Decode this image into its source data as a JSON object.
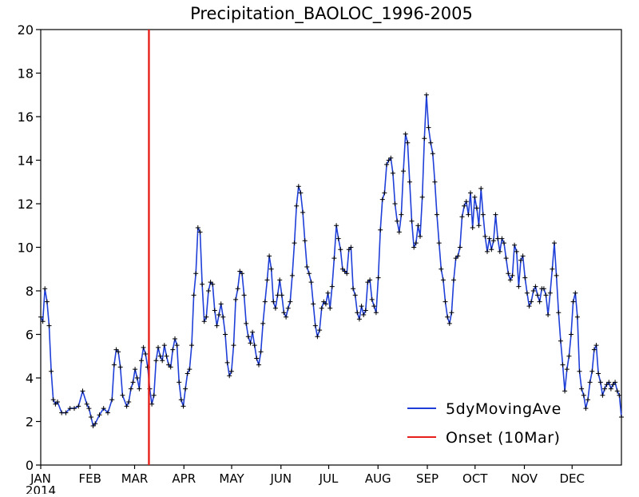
{
  "chart_data": {
    "type": "line",
    "title": "Precipitation_BAOLOC_1996-2005",
    "xlabel": "",
    "ylabel": "",
    "ylim": [
      0,
      20
    ],
    "xlim_days": [
      0,
      365
    ],
    "yticks": [
      "0",
      "2",
      "4",
      "6",
      "8",
      "10",
      "12",
      "14",
      "16",
      "18",
      "20"
    ],
    "xticks": [
      {
        "label": "JAN",
        "day": 0
      },
      {
        "label": "FEB",
        "day": 31
      },
      {
        "label": "MAR",
        "day": 59
      },
      {
        "label": "APR",
        "day": 90
      },
      {
        "label": "MAY",
        "day": 120
      },
      {
        "label": "JUN",
        "day": 151
      },
      {
        "label": "JUL",
        "day": 181
      },
      {
        "label": "AUG",
        "day": 212
      },
      {
        "label": "SEP",
        "day": 243
      },
      {
        "label": "OCT",
        "day": 273
      },
      {
        "label": "NOV",
        "day": 304
      },
      {
        "label": "DEC",
        "day": 334
      }
    ],
    "year_label": "2014",
    "grid": false,
    "legend_position": "bottom-right",
    "series": [
      {
        "name": "5dyMovingAve",
        "color": "#1f3fd9",
        "marker": "+",
        "keypoints": [
          [
            0,
            6.8
          ],
          [
            1,
            6.6
          ],
          [
            2,
            8.1
          ],
          [
            3,
            7.5
          ],
          [
            4,
            6.4
          ],
          [
            5,
            4.3
          ],
          [
            6,
            3.0
          ],
          [
            7,
            2.8
          ],
          [
            8,
            2.9
          ],
          [
            10,
            2.4
          ],
          [
            12,
            2.4
          ],
          [
            14,
            2.6
          ],
          [
            16,
            2.6
          ],
          [
            18,
            2.7
          ],
          [
            20,
            3.4
          ],
          [
            22,
            2.8
          ],
          [
            23,
            2.6
          ],
          [
            24,
            2.2
          ],
          [
            25,
            1.8
          ],
          [
            26,
            1.9
          ],
          [
            28,
            2.3
          ],
          [
            30,
            2.6
          ],
          [
            32,
            2.4
          ],
          [
            34,
            3.0
          ],
          [
            35,
            4.6
          ],
          [
            36,
            5.3
          ],
          [
            37,
            5.2
          ],
          [
            38,
            4.5
          ],
          [
            39,
            3.2
          ],
          [
            41,
            2.7
          ],
          [
            42,
            2.9
          ],
          [
            43,
            3.5
          ],
          [
            44,
            3.8
          ],
          [
            45,
            4.4
          ],
          [
            46,
            4.0
          ],
          [
            47,
            3.5
          ],
          [
            48,
            4.8
          ],
          [
            49,
            5.4
          ],
          [
            50,
            5.1
          ],
          [
            51,
            4.5
          ],
          [
            52,
            3.5
          ],
          [
            53,
            2.8
          ],
          [
            54,
            3.2
          ],
          [
            55,
            4.8
          ],
          [
            56,
            5.4
          ],
          [
            57,
            5.0
          ],
          [
            58,
            4.8
          ],
          [
            59,
            5.5
          ],
          [
            60,
            5.0
          ],
          [
            61,
            4.6
          ],
          [
            62,
            4.5
          ],
          [
            63,
            5.3
          ],
          [
            64,
            5.8
          ],
          [
            65,
            5.5
          ],
          [
            66,
            3.8
          ],
          [
            67,
            3.0
          ],
          [
            68,
            2.7
          ],
          [
            69,
            3.5
          ],
          [
            70,
            4.2
          ],
          [
            71,
            4.4
          ],
          [
            72,
            5.5
          ],
          [
            73,
            7.8
          ],
          [
            74,
            8.8
          ],
          [
            75,
            10.9
          ],
          [
            76,
            10.7
          ],
          [
            77,
            8.3
          ],
          [
            78,
            6.6
          ],
          [
            79,
            6.8
          ],
          [
            80,
            8.0
          ],
          [
            81,
            8.4
          ],
          [
            82,
            8.3
          ],
          [
            83,
            7.1
          ],
          [
            84,
            6.4
          ],
          [
            85,
            6.9
          ],
          [
            86,
            7.4
          ],
          [
            87,
            6.8
          ],
          [
            88,
            6.0
          ],
          [
            89,
            4.7
          ],
          [
            90,
            4.1
          ],
          [
            91,
            4.3
          ],
          [
            92,
            5.5
          ],
          [
            93,
            7.6
          ],
          [
            94,
            8.1
          ],
          [
            95,
            8.9
          ],
          [
            96,
            8.8
          ],
          [
            97,
            7.8
          ],
          [
            98,
            6.5
          ],
          [
            99,
            5.9
          ],
          [
            100,
            5.6
          ],
          [
            101,
            6.1
          ],
          [
            102,
            5.5
          ],
          [
            103,
            4.9
          ],
          [
            104,
            4.6
          ],
          [
            105,
            5.2
          ],
          [
            106,
            6.5
          ],
          [
            107,
            7.5
          ],
          [
            108,
            8.5
          ],
          [
            109,
            9.6
          ],
          [
            110,
            9.0
          ],
          [
            111,
            7.5
          ],
          [
            112,
            7.2
          ],
          [
            113,
            7.8
          ],
          [
            114,
            8.5
          ],
          [
            115,
            7.8
          ],
          [
            116,
            7.0
          ],
          [
            117,
            6.8
          ],
          [
            118,
            7.2
          ],
          [
            119,
            7.5
          ],
          [
            120,
            8.7
          ],
          [
            121,
            10.2
          ],
          [
            122,
            11.9
          ],
          [
            123,
            12.8
          ],
          [
            124,
            12.5
          ],
          [
            125,
            11.6
          ],
          [
            126,
            10.3
          ],
          [
            127,
            9.1
          ],
          [
            128,
            8.8
          ],
          [
            129,
            8.4
          ],
          [
            130,
            7.4
          ],
          [
            131,
            6.4
          ],
          [
            132,
            5.9
          ],
          [
            133,
            6.2
          ],
          [
            134,
            7.2
          ],
          [
            135,
            7.5
          ],
          [
            136,
            7.4
          ],
          [
            137,
            7.9
          ],
          [
            138,
            7.2
          ],
          [
            139,
            8.2
          ],
          [
            140,
            9.5
          ],
          [
            141,
            11.0
          ],
          [
            142,
            10.4
          ],
          [
            143,
            9.9
          ],
          [
            144,
            9.0
          ],
          [
            145,
            8.9
          ],
          [
            146,
            8.8
          ],
          [
            147,
            9.9
          ],
          [
            148,
            10.0
          ],
          [
            149,
            8.1
          ],
          [
            150,
            7.8
          ],
          [
            151,
            7.0
          ],
          [
            152,
            6.7
          ],
          [
            153,
            7.3
          ],
          [
            154,
            6.9
          ],
          [
            155,
            7.1
          ],
          [
            156,
            8.4
          ],
          [
            157,
            8.5
          ],
          [
            158,
            7.6
          ],
          [
            159,
            7.3
          ],
          [
            160,
            7.0
          ],
          [
            161,
            8.6
          ],
          [
            162,
            10.8
          ],
          [
            163,
            12.2
          ],
          [
            164,
            12.5
          ],
          [
            165,
            13.8
          ],
          [
            166,
            14.0
          ],
          [
            167,
            14.1
          ],
          [
            168,
            13.4
          ],
          [
            169,
            12.0
          ],
          [
            170,
            11.2
          ],
          [
            171,
            10.7
          ],
          [
            172,
            11.5
          ],
          [
            173,
            13.5
          ],
          [
            174,
            15.2
          ],
          [
            175,
            14.8
          ],
          [
            176,
            13.0
          ],
          [
            177,
            11.2
          ],
          [
            178,
            10.0
          ],
          [
            179,
            10.2
          ],
          [
            180,
            11.0
          ],
          [
            181,
            10.5
          ],
          [
            182,
            12.3
          ],
          [
            183,
            15.0
          ],
          [
            184,
            17.0
          ],
          [
            185,
            15.5
          ],
          [
            186,
            14.8
          ],
          [
            187,
            14.3
          ],
          [
            188,
            13.0
          ],
          [
            189,
            11.5
          ],
          [
            190,
            10.2
          ],
          [
            191,
            9.0
          ],
          [
            192,
            8.5
          ],
          [
            193,
            7.5
          ],
          [
            194,
            6.8
          ],
          [
            195,
            6.5
          ],
          [
            196,
            7.0
          ],
          [
            197,
            8.5
          ],
          [
            198,
            9.5
          ],
          [
            199,
            9.6
          ],
          [
            200,
            10.0
          ],
          [
            201,
            11.4
          ],
          [
            202,
            11.9
          ],
          [
            203,
            12.1
          ],
          [
            204,
            11.5
          ],
          [
            205,
            12.5
          ],
          [
            206,
            10.9
          ],
          [
            207,
            12.3
          ],
          [
            208,
            11.8
          ],
          [
            209,
            11.0
          ],
          [
            210,
            12.7
          ],
          [
            211,
            11.5
          ],
          [
            212,
            10.5
          ],
          [
            213,
            9.8
          ],
          [
            214,
            10.4
          ],
          [
            215,
            9.9
          ],
          [
            216,
            10.3
          ],
          [
            217,
            11.5
          ],
          [
            218,
            10.4
          ],
          [
            219,
            9.8
          ],
          [
            220,
            10.4
          ],
          [
            221,
            10.2
          ],
          [
            222,
            9.5
          ],
          [
            223,
            8.8
          ],
          [
            224,
            8.5
          ],
          [
            225,
            8.7
          ],
          [
            226,
            10.1
          ],
          [
            227,
            9.8
          ],
          [
            228,
            8.2
          ],
          [
            229,
            9.4
          ],
          [
            230,
            9.6
          ],
          [
            231,
            8.6
          ],
          [
            232,
            7.9
          ],
          [
            233,
            7.3
          ],
          [
            234,
            7.5
          ],
          [
            235,
            8.0
          ],
          [
            236,
            8.2
          ],
          [
            237,
            7.8
          ],
          [
            238,
            7.5
          ],
          [
            239,
            8.1
          ],
          [
            240,
            8.1
          ],
          [
            241,
            7.8
          ],
          [
            242,
            6.9
          ],
          [
            243,
            7.9
          ],
          [
            244,
            9.0
          ],
          [
            245,
            10.2
          ],
          [
            246,
            8.7
          ],
          [
            247,
            7.0
          ],
          [
            248,
            5.7
          ],
          [
            249,
            4.6
          ],
          [
            250,
            3.4
          ],
          [
            251,
            4.4
          ],
          [
            252,
            5.0
          ],
          [
            253,
            6.0
          ],
          [
            254,
            7.5
          ],
          [
            255,
            7.9
          ],
          [
            256,
            6.8
          ],
          [
            257,
            4.3
          ],
          [
            258,
            3.5
          ],
          [
            259,
            3.2
          ],
          [
            260,
            2.6
          ],
          [
            261,
            3.0
          ],
          [
            262,
            3.8
          ],
          [
            263,
            4.3
          ],
          [
            264,
            5.3
          ],
          [
            265,
            5.5
          ],
          [
            266,
            4.2
          ],
          [
            267,
            3.8
          ],
          [
            268,
            3.2
          ],
          [
            269,
            3.5
          ],
          [
            270,
            3.7
          ],
          [
            271,
            3.8
          ],
          [
            272,
            3.5
          ],
          [
            273,
            3.7
          ],
          [
            274,
            3.8
          ],
          [
            275,
            3.4
          ],
          [
            276,
            3.2
          ],
          [
            277,
            2.2
          ]
        ],
        "keypoint_x_scale": [
          0,
          277,
          0,
          365
        ]
      }
    ],
    "annotations": [
      {
        "name": "Onset (10Mar)",
        "type": "vline",
        "x_day": 68,
        "color": "#e8201c"
      }
    ],
    "legend": [
      {
        "label": "5dyMovingAve",
        "color": "#1f3fd9"
      },
      {
        "label": "Onset (10Mar)",
        "color": "#e8201c"
      }
    ]
  }
}
